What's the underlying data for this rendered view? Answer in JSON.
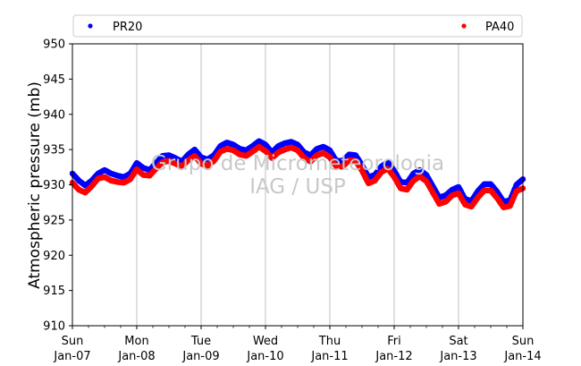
{
  "chart_data": {
    "type": "scatter",
    "ylabel": "Atmospheric pressure (mb)",
    "xlabel": "",
    "ylim": [
      910,
      950
    ],
    "yticks": [
      910,
      915,
      920,
      925,
      930,
      935,
      940,
      945,
      950
    ],
    "xlim": [
      0,
      7
    ],
    "x_ticks": [
      {
        "x": 0,
        "day": "Sun",
        "date": "Jan-07"
      },
      {
        "x": 1,
        "day": "Mon",
        "date": "Jan-08"
      },
      {
        "x": 2,
        "day": "Tue",
        "date": "Jan-09"
      },
      {
        "x": 3,
        "day": "Wed",
        "date": "Jan-10"
      },
      {
        "x": 4,
        "day": "Thu",
        "date": "Jan-11"
      },
      {
        "x": 5,
        "day": "Fri",
        "date": "Jan-12"
      },
      {
        "x": 6,
        "day": "Sat",
        "date": "Jan-13"
      },
      {
        "x": 7,
        "day": "Sun",
        "date": "Jan-14"
      }
    ],
    "grid": "vertical",
    "legend": "top",
    "watermark": [
      "Grupo de Micrometeorologia",
      "IAG / USP"
    ],
    "series": [
      {
        "name": "PR20",
        "color": "#0000ff",
        "x": [
          0,
          0.1,
          0.2,
          0.3,
          0.4,
          0.5,
          0.6,
          0.7,
          0.8,
          0.9,
          1.0,
          1.1,
          1.2,
          1.3,
          1.4,
          1.5,
          1.6,
          1.7,
          1.8,
          1.9,
          2.0,
          2.1,
          2.2,
          2.3,
          2.4,
          2.5,
          2.6,
          2.7,
          2.8,
          2.9,
          3.0,
          3.1,
          3.2,
          3.3,
          3.4,
          3.5,
          3.6,
          3.7,
          3.8,
          3.9,
          4.0,
          4.1,
          4.2,
          4.3,
          4.4,
          4.5,
          4.6,
          4.7,
          4.8,
          4.9,
          5.0,
          5.1,
          5.2,
          5.3,
          5.4,
          5.5,
          5.6,
          5.7,
          5.8,
          5.9,
          6.0,
          6.1,
          6.2,
          6.3,
          6.4,
          6.5,
          6.6,
          6.7,
          6.8,
          6.9,
          7.0
        ],
        "y": [
          931.6,
          930.6,
          929.9,
          930.6,
          931.6,
          932.1,
          931.6,
          931.3,
          931.1,
          931.6,
          933.1,
          932.4,
          932.1,
          933.1,
          934.1,
          934.2,
          933.8,
          933.3,
          934.3,
          935.0,
          933.9,
          933.6,
          934.2,
          935.5,
          936.0,
          935.7,
          935.1,
          934.9,
          935.5,
          936.2,
          935.7,
          934.6,
          935.5,
          935.9,
          936.1,
          935.7,
          934.6,
          934.2,
          935.1,
          935.4,
          934.9,
          933.4,
          933.4,
          934.3,
          934.2,
          932.8,
          931.1,
          931.4,
          932.6,
          933.2,
          932.0,
          930.4,
          930.3,
          931.6,
          932.1,
          931.4,
          929.8,
          928.2,
          928.5,
          929.3,
          929.7,
          928.0,
          927.7,
          929.1,
          930.1,
          930.1,
          929.0,
          927.6,
          927.8,
          930.0,
          930.8
        ]
      },
      {
        "name": "PA40",
        "color": "#ff0000",
        "x": [
          0,
          0.1,
          0.2,
          0.3,
          0.4,
          0.5,
          0.6,
          0.7,
          0.8,
          0.9,
          1.0,
          1.1,
          1.2,
          1.3,
          1.4,
          1.5,
          1.6,
          1.7,
          1.8,
          1.9,
          2.0,
          2.1,
          2.2,
          2.3,
          2.4,
          2.5,
          2.6,
          2.7,
          2.8,
          2.9,
          3.0,
          3.1,
          3.2,
          3.3,
          3.4,
          3.5,
          3.6,
          3.7,
          3.8,
          3.9,
          4.0,
          4.1,
          4.2,
          4.3,
          4.4,
          4.5,
          4.6,
          4.7,
          4.8,
          4.9,
          5.0,
          5.1,
          5.2,
          5.3,
          5.4,
          5.5,
          5.6,
          5.7,
          5.8,
          5.9,
          6.0,
          6.1,
          6.2,
          6.3,
          6.4,
          6.5,
          6.6,
          6.7,
          6.8,
          6.9,
          7.0
        ],
        "y": [
          930.3,
          929.3,
          928.9,
          929.8,
          930.9,
          931.1,
          930.6,
          930.4,
          930.3,
          930.8,
          932.2,
          931.4,
          931.3,
          932.3,
          933.2,
          933.4,
          933.0,
          932.6,
          933.5,
          934.1,
          933.0,
          932.7,
          933.4,
          934.7,
          935.1,
          934.9,
          934.3,
          934.1,
          934.7,
          935.4,
          934.8,
          933.8,
          934.6,
          935.0,
          935.3,
          934.9,
          933.8,
          933.3,
          934.2,
          934.5,
          933.9,
          932.6,
          932.6,
          933.5,
          933.4,
          932.0,
          930.2,
          930.6,
          931.8,
          932.3,
          931.1,
          929.5,
          929.3,
          930.6,
          931.2,
          930.5,
          928.9,
          927.3,
          927.6,
          928.5,
          928.8,
          927.2,
          926.9,
          928.2,
          929.2,
          929.2,
          928.1,
          926.8,
          927.0,
          929.1,
          929.5
        ]
      }
    ]
  }
}
